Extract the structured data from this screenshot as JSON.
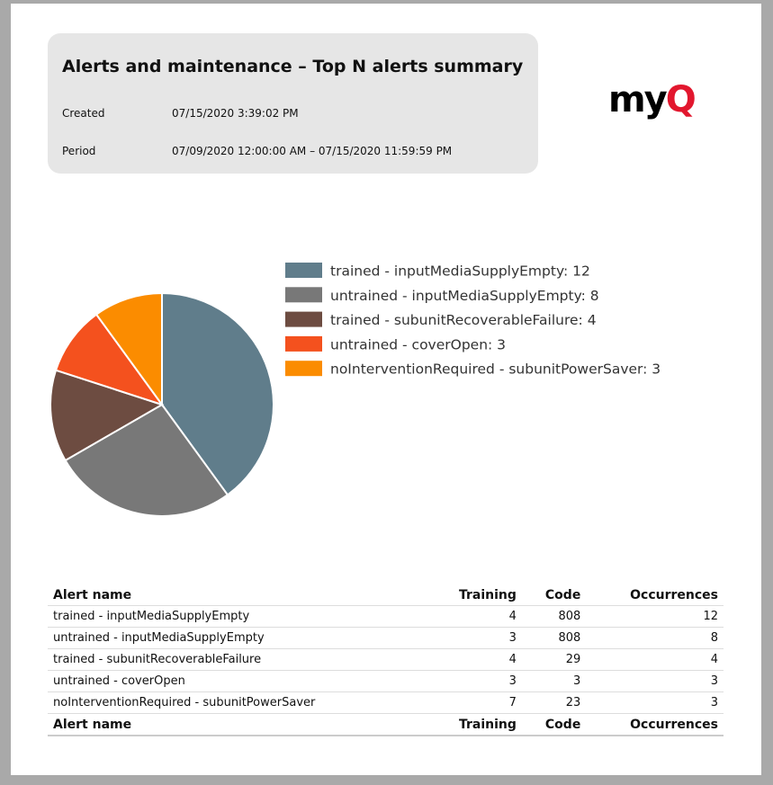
{
  "header": {
    "title": "Alerts and maintenance – Top N alerts summary",
    "fields": [
      {
        "label": "Created",
        "value": "07/15/2020 3:39:02 PM"
      },
      {
        "label": "Period",
        "value": "07/09/2020 12:00:00 AM – 07/15/2020 11:59:59 PM"
      }
    ]
  },
  "logo": [
    "my",
    "Q"
  ],
  "chart": {
    "type": "pie",
    "values": [
      12,
      8,
      4,
      3,
      3
    ],
    "value_labels": [
      "trained - inputMediaSupplyEmpty: 12",
      "untrained - inputMediaSupplyEmpty: 8",
      "trained - subunitRecoverableFailure: 4",
      "untrained - coverOpen: 3",
      "noInterventionRequired - subunitPowerSaver: 3"
    ],
    "colors": [
      "#607d8b",
      "#787878",
      "#6d4c41",
      "#f4511e",
      "#fb8c00"
    ]
  },
  "table": {
    "columns": [
      "Alert name",
      "Training",
      "Code",
      "Occurrences"
    ],
    "rows": [
      [
        "trained - inputMediaSupplyEmpty",
        4,
        808,
        12
      ],
      [
        "untrained - inputMediaSupplyEmpty",
        3,
        808,
        8
      ],
      [
        "trained - subunitRecoverableFailure",
        4,
        29,
        4
      ],
      [
        "untrained - coverOpen",
        3,
        3,
        3
      ],
      [
        "noInterventionRequired - subunitPowerSaver",
        7,
        23,
        3
      ]
    ]
  }
}
